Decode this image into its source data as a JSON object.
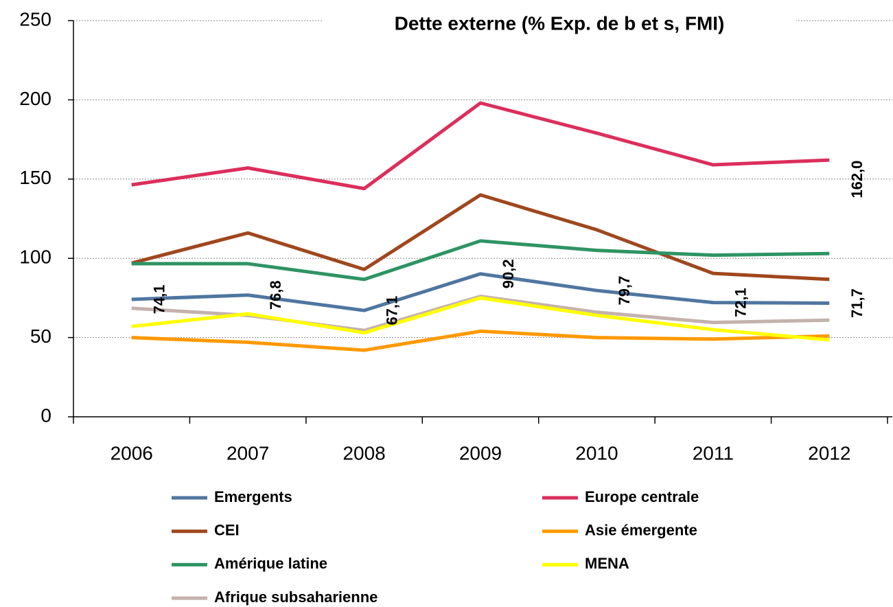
{
  "chart_data": {
    "type": "line",
    "title": "Dette externe (% Exp. de b et s, FMI)",
    "categories": [
      "2006",
      "2007",
      "2008",
      "2009",
      "2010",
      "2011",
      "2012"
    ],
    "ylim": [
      0,
      250
    ],
    "yticks": [
      0,
      50,
      100,
      150,
      200,
      250
    ],
    "grid": true,
    "series": [
      {
        "name": "Emergents",
        "color": "#4f76a0",
        "values": [
          74.1,
          76.8,
          67.1,
          90.2,
          79.7,
          72.1,
          71.7
        ],
        "value_labels": [
          "74,1",
          "76,8",
          "67,1",
          "90,2",
          "79,7",
          "72,1",
          "71,7"
        ]
      },
      {
        "name": "Europe centrale",
        "color": "#dc2e5c",
        "values": [
          146.4,
          157,
          144,
          198,
          179,
          159,
          162.0
        ],
        "value_labels": [
          null,
          null,
          null,
          null,
          null,
          null,
          "162,0"
        ]
      },
      {
        "name": "CEI",
        "color": "#a0471e",
        "values": [
          97,
          116,
          93,
          140,
          118,
          90.5,
          86.7
        ]
      },
      {
        "name": "Asie émergente",
        "color": "#ff9900",
        "values": [
          50,
          47,
          42,
          54,
          50,
          49,
          51
        ]
      },
      {
        "name": "Amérique latine",
        "color": "#2e9463",
        "values": [
          96.6,
          96.6,
          86.7,
          111,
          105,
          102,
          103
        ]
      },
      {
        "name": "MENA",
        "color": "#ffff00",
        "values": [
          57,
          65,
          53,
          75,
          64,
          55,
          48.5
        ]
      },
      {
        "name": "Afrique subsaharienne",
        "color": "#c4b2ac",
        "values": [
          68.5,
          64,
          54.5,
          76,
          66,
          59.5,
          61
        ]
      }
    ]
  }
}
